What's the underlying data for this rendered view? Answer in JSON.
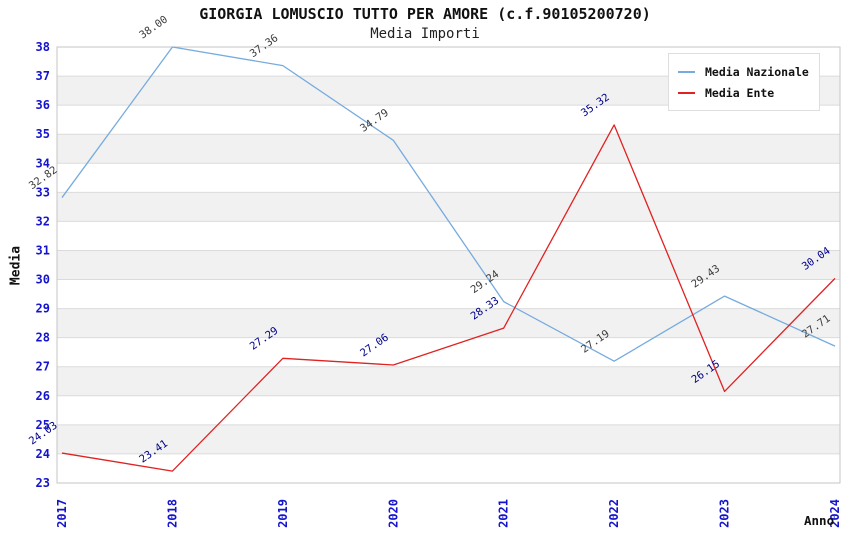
{
  "title": "GIORGIA LOMUSCIO TUTTO PER AMORE (c.f.90105200720)",
  "subtitle": "Media Importi",
  "chart_data": {
    "type": "line",
    "x": [
      "2017",
      "2018",
      "2019",
      "2020",
      "2021",
      "2022",
      "2023",
      "2024"
    ],
    "xlabel": "Anno",
    "ylabel": "Media",
    "ylim": [
      23,
      38
    ],
    "ytick_step": 1,
    "grid": "horizontal-bands",
    "legend_position": "top-right",
    "series": [
      {
        "name": "Media Nazionale",
        "color": "#76abde",
        "label_color": "#3c3c3c",
        "values": [
          32.82,
          38.0,
          37.36,
          34.79,
          29.24,
          27.19,
          29.43,
          27.71
        ]
      },
      {
        "name": "Media Ente",
        "color": "#e02222",
        "label_color": "#00008b",
        "values": [
          24.03,
          23.41,
          27.29,
          27.06,
          28.33,
          35.32,
          26.15,
          30.04
        ]
      }
    ]
  },
  "colors": {
    "tick_blue": "#1414cc",
    "band_gray": "#f1f1f1",
    "band_white": "#ffffff",
    "gridline": "#dbdbdb",
    "plot_border": "#c6c6c6",
    "title_black": "#111111"
  }
}
